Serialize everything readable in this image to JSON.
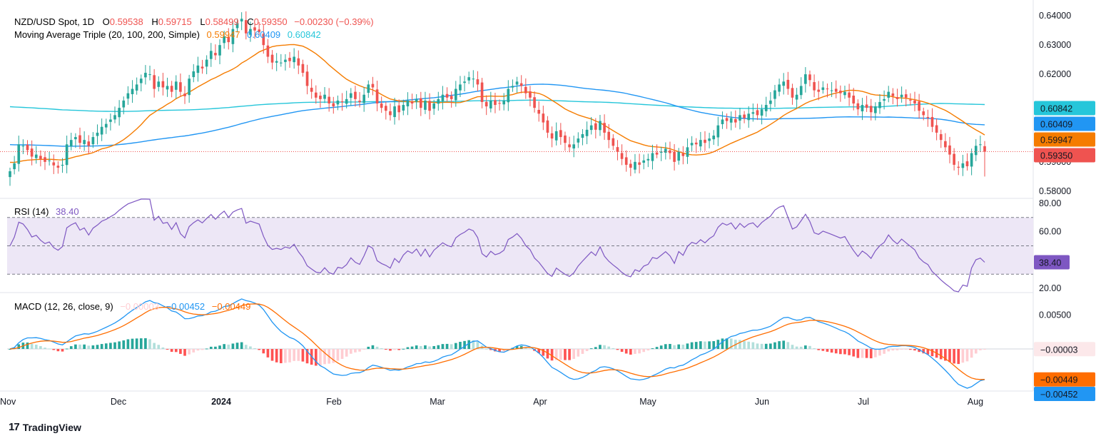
{
  "header": {
    "symbol": "NZD/USD Spot, 1D",
    "open_label": "O",
    "open": "0.59538",
    "high_label": "H",
    "high": "0.59715",
    "low_label": "L",
    "low": "0.58499",
    "close_label": "C",
    "close": "0.59350",
    "change": "−0.00230 (−0.39%)",
    "ma_label": "Moving Average Triple (20, 100, 200, Simple)",
    "ma20": "0.59947",
    "ma100": "0.60409",
    "ma200": "0.60842"
  },
  "rsi_header": {
    "label": "RSI (14)",
    "value": "38.40"
  },
  "macd_header": {
    "label": "MACD (12, 26, close, 9)",
    "hist": "−0.00003",
    "macd": "−0.00452",
    "signal": "−0.00449"
  },
  "price_badges": {
    "ma200": "0.60842",
    "ma100": "0.60409",
    "ma20": "0.59947",
    "close": "0.59350"
  },
  "rsi_badge": "38.40",
  "macd_badges": {
    "hist": "−0.00003",
    "signal": "−0.00449",
    "macd": "−0.00452"
  },
  "brand": "TradingView",
  "colors": {
    "up": "#26a69a",
    "down": "#ef5350",
    "ma20": "#f57c00",
    "ma100": "#2196f3",
    "ma200": "#26c6da",
    "rsi": "#7e57c2",
    "rsi_band": "#ede7f6",
    "macd": "#2196f3",
    "signal": "#ff6d00",
    "hist_up_strong": "#26a69a",
    "hist_up_weak": "#b2dfdb",
    "hist_down_strong": "#ff5252",
    "hist_down_weak": "#ffcdd2"
  },
  "chart_data": {
    "type": "candlestick",
    "x_ticks": [
      "Nov",
      "Dec",
      "2024",
      "Feb",
      "Mar",
      "Apr",
      "May",
      "Jun",
      "Jul",
      "Aug"
    ],
    "price_axis": {
      "ticks": [
        "0.64000",
        "0.63000",
        "0.62000",
        "0.60842",
        "0.60409",
        "0.59947",
        "0.59350",
        "0.59000",
        "0.58000"
      ],
      "ylim": [
        0.5775,
        0.6425
      ]
    },
    "rsi_axis": {
      "ticks": [
        "80.00",
        "60.00",
        "20.00"
      ],
      "ylim": [
        17,
        83
      ],
      "bands": [
        30,
        50,
        70
      ]
    },
    "macd_axis": {
      "ticks": [
        "0.00500",
        "−0.00003",
        "−0.00449",
        "−0.00452"
      ],
      "ylim": [
        -0.0062,
        0.0082
      ]
    },
    "closes": [
      0.5868,
      0.5895,
      0.596,
      0.5955,
      0.594,
      0.5918,
      0.5925,
      0.591,
      0.59,
      0.5905,
      0.5888,
      0.588,
      0.589,
      0.596,
      0.5975,
      0.5985,
      0.5965,
      0.5975,
      0.5955,
      0.5985,
      0.6,
      0.602,
      0.603,
      0.6045,
      0.606,
      0.6085,
      0.611,
      0.6135,
      0.615,
      0.6165,
      0.6185,
      0.6205,
      0.62,
      0.615,
      0.6175,
      0.6155,
      0.616,
      0.614,
      0.6175,
      0.614,
      0.6125,
      0.6185,
      0.621,
      0.623,
      0.622,
      0.625,
      0.628,
      0.6265,
      0.63,
      0.633,
      0.631,
      0.6355,
      0.6375,
      0.639,
      0.634,
      0.6355,
      0.635,
      0.6345,
      0.63,
      0.626,
      0.624,
      0.6245,
      0.624,
      0.625,
      0.6245,
      0.626,
      0.623,
      0.6205,
      0.616,
      0.614,
      0.612,
      0.6115,
      0.613,
      0.61,
      0.609,
      0.611,
      0.6105,
      0.6115,
      0.6135,
      0.6115,
      0.6105,
      0.613,
      0.6165,
      0.6155,
      0.61,
      0.6085,
      0.6075,
      0.606,
      0.609,
      0.607,
      0.6095,
      0.611,
      0.61,
      0.6115,
      0.6085,
      0.611,
      0.6075,
      0.61,
      0.6115,
      0.613,
      0.612,
      0.6115,
      0.615,
      0.6165,
      0.6175,
      0.619,
      0.6185,
      0.6165,
      0.6105,
      0.609,
      0.611,
      0.6095,
      0.61,
      0.611,
      0.615,
      0.616,
      0.6175,
      0.616,
      0.6135,
      0.612,
      0.6085,
      0.6065,
      0.6035,
      0.6,
      0.598,
      0.6005,
      0.5985,
      0.5965,
      0.595,
      0.596,
      0.598,
      0.5995,
      0.601,
      0.6025,
      0.601,
      0.604,
      0.6,
      0.5975,
      0.5955,
      0.5935,
      0.591,
      0.589,
      0.588,
      0.59,
      0.589,
      0.5905,
      0.591,
      0.593,
      0.5925,
      0.5935,
      0.5945,
      0.593,
      0.59,
      0.5935,
      0.592,
      0.595,
      0.5965,
      0.596,
      0.5975,
      0.5965,
      0.598,
      0.599,
      0.6025,
      0.6045,
      0.604,
      0.605,
      0.6035,
      0.606,
      0.605,
      0.6065,
      0.607,
      0.606,
      0.608,
      0.6095,
      0.611,
      0.6145,
      0.6165,
      0.6175,
      0.615,
      0.612,
      0.613,
      0.616,
      0.62,
      0.618,
      0.6145,
      0.614,
      0.6155,
      0.615,
      0.6145,
      0.614,
      0.6135,
      0.614,
      0.612,
      0.61,
      0.608,
      0.6095,
      0.6085,
      0.607,
      0.609,
      0.6105,
      0.6115,
      0.614,
      0.6125,
      0.6115,
      0.613,
      0.612,
      0.611,
      0.61,
      0.6075,
      0.606,
      0.605,
      0.602,
      0.6,
      0.5975,
      0.595,
      0.5925,
      0.589,
      0.588,
      0.5895,
      0.5885,
      0.593,
      0.5955,
      0.596,
      0.5935
    ],
    "overlays": [
      "SMA 20",
      "SMA 100",
      "SMA 200"
    ],
    "last_close": 0.5935,
    "rsi_last": 38.4
  }
}
